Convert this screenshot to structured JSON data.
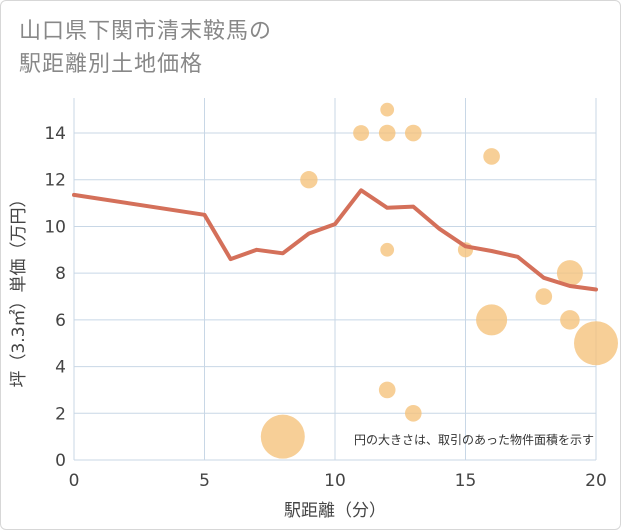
{
  "chart_data": {
    "type": "scatter",
    "title_lines": [
      "山口県下関市清末鞍馬の",
      "駅距離別土地価格"
    ],
    "xlabel": "駅距離（分）",
    "ylabel": "坪（3.3㎡）単価（万円）",
    "xlim": [
      0,
      20
    ],
    "ylim": [
      0,
      15.5
    ],
    "x_ticks": [
      "0",
      "5",
      "10",
      "15",
      "20"
    ],
    "y_ticks": [
      "0",
      "2",
      "4",
      "6",
      "8",
      "10",
      "12",
      "14"
    ],
    "grid": true,
    "note": "円の大きさは、取引のあった物件面積を示す",
    "colors": {
      "points": "#f5c27a",
      "line": "#d4705a",
      "grid": "#c8d7e6"
    },
    "points": [
      {
        "x": 8,
        "y": 1.0,
        "size": 5
      },
      {
        "x": 9,
        "y": 12.0,
        "size": 1.3
      },
      {
        "x": 11,
        "y": 14.0,
        "size": 1.1
      },
      {
        "x": 12,
        "y": 15.0,
        "size": 0.8
      },
      {
        "x": 12,
        "y": 14.0,
        "size": 1.2
      },
      {
        "x": 12,
        "y": 9.0,
        "size": 0.8
      },
      {
        "x": 12,
        "y": 3.0,
        "size": 1.2
      },
      {
        "x": 13,
        "y": 14.0,
        "size": 1.2
      },
      {
        "x": 13,
        "y": 2.0,
        "size": 1.2
      },
      {
        "x": 15,
        "y": 9.0,
        "size": 1.0
      },
      {
        "x": 16,
        "y": 13.0,
        "size": 1.2
      },
      {
        "x": 16,
        "y": 6.0,
        "size": 3.2
      },
      {
        "x": 18,
        "y": 7.0,
        "size": 1.2
      },
      {
        "x": 19,
        "y": 8.0,
        "size": 2.5
      },
      {
        "x": 19,
        "y": 6.0,
        "size": 1.6
      },
      {
        "x": 20,
        "y": 5.0,
        "size": 5
      }
    ],
    "line": [
      {
        "x": 0,
        "y": 11.35
      },
      {
        "x": 5,
        "y": 10.5
      },
      {
        "x": 6,
        "y": 8.6
      },
      {
        "x": 7,
        "y": 9.0
      },
      {
        "x": 8,
        "y": 8.85
      },
      {
        "x": 9,
        "y": 9.7
      },
      {
        "x": 10,
        "y": 10.1
      },
      {
        "x": 11,
        "y": 11.55
      },
      {
        "x": 12,
        "y": 10.8
      },
      {
        "x": 13,
        "y": 10.85
      },
      {
        "x": 14,
        "y": 9.9
      },
      {
        "x": 15,
        "y": 9.15
      },
      {
        "x": 16,
        "y": 8.95
      },
      {
        "x": 17,
        "y": 8.7
      },
      {
        "x": 18,
        "y": 7.8
      },
      {
        "x": 19,
        "y": 7.45
      },
      {
        "x": 20,
        "y": 7.3
      }
    ]
  }
}
